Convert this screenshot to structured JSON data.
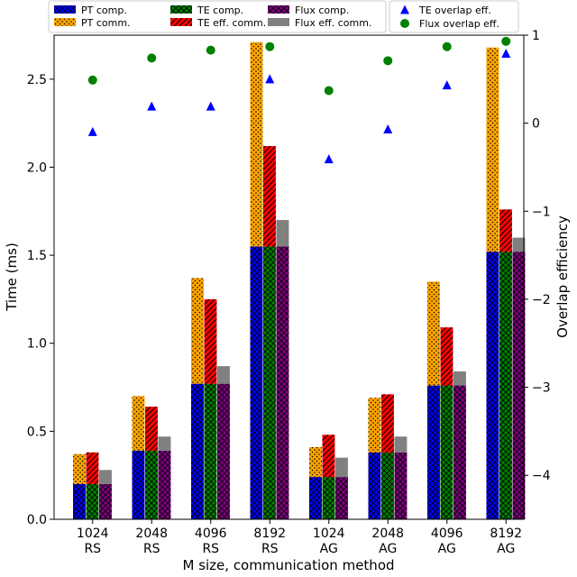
{
  "chart_data": {
    "type": "bar",
    "xlabel": "M size, communication method",
    "ylabel": "Time (ms)",
    "ylabel_right": "Overlap efficiency",
    "ylim": [
      0,
      2.75
    ],
    "ylim_right": [
      -4.5,
      1
    ],
    "yticks": [
      {
        "value": 0.0,
        "label": "0.0"
      },
      {
        "value": 0.5,
        "label": "0.5"
      },
      {
        "value": 1.0,
        "label": "1.0"
      },
      {
        "value": 1.5,
        "label": "1.5"
      },
      {
        "value": 2.0,
        "label": "2.0"
      },
      {
        "value": 2.5,
        "label": "2.5"
      }
    ],
    "yticks_right": [
      {
        "value": 1,
        "label": "1"
      },
      {
        "value": 0,
        "label": "0"
      },
      {
        "value": -1,
        "label": "−1"
      },
      {
        "value": -2,
        "label": "−2"
      },
      {
        "value": -3,
        "label": "−3"
      },
      {
        "value": -4,
        "label": "−4"
      }
    ],
    "categories": [
      {
        "size": "1024",
        "method": "RS"
      },
      {
        "size": "2048",
        "method": "RS"
      },
      {
        "size": "4096",
        "method": "RS"
      },
      {
        "size": "8192",
        "method": "RS"
      },
      {
        "size": "1024",
        "method": "AG"
      },
      {
        "size": "2048",
        "method": "AG"
      },
      {
        "size": "4096",
        "method": "AG"
      },
      {
        "size": "8192",
        "method": "AG"
      }
    ],
    "groups": [
      {
        "name": "PT",
        "series": [
          {
            "name": "PT comp.",
            "color": "#0000ff",
            "pattern": "crosshatch",
            "values": [
              0.2,
              0.39,
              0.77,
              1.55,
              0.24,
              0.38,
              0.76,
              1.52
            ]
          },
          {
            "name": "PT comm.",
            "color": "#ffa500",
            "pattern": "dots",
            "values": [
              0.17,
              0.31,
              0.6,
              1.16,
              0.17,
              0.31,
              0.59,
              1.16
            ]
          }
        ]
      },
      {
        "name": "TE",
        "series": [
          {
            "name": "TE comp.",
            "color": "#008000",
            "pattern": "crosshatch",
            "values": [
              0.2,
              0.39,
              0.77,
              1.55,
              0.24,
              0.38,
              0.76,
              1.52
            ]
          },
          {
            "name": "TE eff. comm.",
            "color": "#ff0000",
            "pattern": "diagonal",
            "values": [
              0.18,
              0.25,
              0.48,
              0.57,
              0.24,
              0.33,
              0.33,
              0.24
            ]
          }
        ]
      },
      {
        "name": "Flux",
        "series": [
          {
            "name": "Flux comp.",
            "color": "#800080",
            "pattern": "crosshatch",
            "values": [
              0.2,
              0.39,
              0.77,
              1.55,
              0.24,
              0.38,
              0.76,
              1.52
            ]
          },
          {
            "name": "Flux eff. comm.",
            "color": "#808080",
            "pattern": "solid",
            "values": [
              0.08,
              0.08,
              0.1,
              0.15,
              0.11,
              0.09,
              0.08,
              0.08
            ]
          }
        ]
      }
    ],
    "markers": [
      {
        "name": "TE overlap eff.",
        "color": "#0000ff",
        "shape": "triangle",
        "values": [
          -0.1,
          0.19,
          0.19,
          0.5,
          -0.41,
          -0.07,
          0.43,
          0.79
        ]
      },
      {
        "name": "Flux overlap eff.",
        "color": "#008000",
        "shape": "circle",
        "values": [
          0.49,
          0.74,
          0.83,
          0.87,
          0.37,
          0.71,
          0.87,
          0.93
        ]
      }
    ],
    "legend_location": "top"
  }
}
